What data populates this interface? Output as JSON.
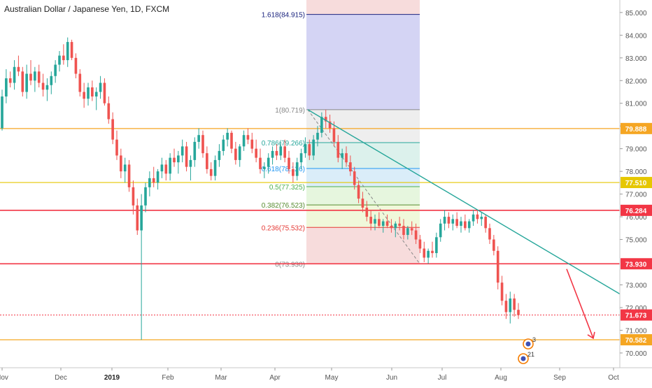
{
  "chart_data": {
    "type": "candlestick",
    "title": "Australian Dollar / Japanese Yen, 1D, FXCM",
    "y_axis": {
      "position": "right",
      "range": [
        69.35,
        85.55
      ],
      "ticks": [
        "70.000",
        "71.000",
        "72.000",
        "73.000",
        "75.000",
        "76.000",
        "77.000",
        "78.000",
        "79.000",
        "80.000",
        "81.000",
        "82.000",
        "83.000",
        "84.000",
        "85.000"
      ]
    },
    "x_axis": {
      "ticks": [
        "Nov",
        "Dec",
        "2019",
        "Feb",
        "Mar",
        "Apr",
        "May",
        "Jun",
        "Jul",
        "Aug",
        "Sep",
        "Oct"
      ]
    },
    "grid": false,
    "horizontal_levels": [
      {
        "label": "79.888",
        "value": 79.888,
        "color": "#f5a623"
      },
      {
        "label": "77.510",
        "value": 77.51,
        "color": "#e6c700"
      },
      {
        "label": "76.284",
        "value": 76.284,
        "color": "#f23645"
      },
      {
        "label": "73.930",
        "value": 73.93,
        "color": "#f23645"
      },
      {
        "label": "71.673",
        "value": 71.673,
        "color": "#f23645"
      },
      {
        "label": "70.582",
        "value": 70.582,
        "color": "#f5a623"
      }
    ],
    "fibonacci": {
      "levels": [
        {
          "label": "1.618(84.915)",
          "value": 84.915,
          "color": "#1a237e",
          "fill": "#ccccf2"
        },
        {
          "label": "1(80.719)",
          "value": 80.719,
          "color": "#888888",
          "fill": "#ebebeb"
        },
        {
          "label": "0.786(79.266)",
          "value": 79.266,
          "color": "#26a69a",
          "fill": "#d6efe9"
        },
        {
          "label": "0.618(78.126)",
          "value": 78.126,
          "color": "#2196f3",
          "fill": "#d4eaf8"
        },
        {
          "label": "0.5(77.325)",
          "value": 77.325,
          "color": "#4caf50",
          "fill": "#e2f4d8"
        },
        {
          "label": "0.382(76.523)",
          "value": 76.523,
          "color": "#558b2f",
          "fill": "#edf7d4"
        },
        {
          "label": "0.236(75.532)",
          "value": 75.532,
          "color": "#e53935",
          "fill": "#f6d6d6"
        },
        {
          "label": "0(73.930)",
          "value": 73.93,
          "color": "#888888",
          "fill": "#f6d6d6"
        }
      ]
    },
    "trendline": {
      "from": [
        0.47,
        80.719
      ],
      "to": [
        1.0,
        72.6
      ],
      "color": "#26a69a"
    },
    "projection_arrow": {
      "from": [
        0.87,
        73.7
      ],
      "to": [
        0.91,
        70.65
      ],
      "color": "#f23645"
    },
    "ohlc": [
      [
        79.9,
        81.6,
        79.8,
        81.3
      ],
      [
        81.3,
        82.5,
        81.0,
        82.1
      ],
      [
        82.1,
        82.4,
        81.7,
        81.9
      ],
      [
        81.9,
        82.9,
        81.6,
        82.6
      ],
      [
        82.6,
        83.1,
        82.2,
        82.4
      ],
      [
        82.4,
        82.6,
        81.3,
        81.5
      ],
      [
        81.5,
        82.7,
        81.2,
        82.3
      ],
      [
        82.3,
        82.9,
        81.8,
        82.0
      ],
      [
        82.0,
        82.6,
        81.5,
        82.4
      ],
      [
        82.4,
        82.7,
        81.7,
        81.9
      ],
      [
        81.9,
        82.3,
        81.3,
        81.6
      ],
      [
        81.6,
        82.1,
        81.1,
        81.8
      ],
      [
        81.8,
        82.4,
        81.4,
        82.2
      ],
      [
        82.2,
        82.9,
        81.9,
        82.7
      ],
      [
        82.7,
        83.3,
        82.4,
        83.1
      ],
      [
        83.1,
        83.6,
        82.7,
        82.9
      ],
      [
        82.9,
        83.9,
        82.6,
        83.7
      ],
      [
        83.7,
        83.8,
        82.9,
        83.0
      ],
      [
        83.0,
        83.2,
        82.1,
        82.3
      ],
      [
        82.3,
        82.5,
        81.3,
        81.5
      ],
      [
        81.5,
        81.9,
        80.8,
        81.2
      ],
      [
        81.2,
        81.9,
        80.9,
        81.7
      ],
      [
        81.7,
        82.0,
        81.1,
        81.3
      ],
      [
        81.3,
        81.7,
        80.7,
        81.5
      ],
      [
        81.5,
        82.2,
        81.2,
        81.9
      ],
      [
        81.9,
        82.1,
        80.9,
        81.0
      ],
      [
        81.0,
        81.3,
        80.1,
        80.3
      ],
      [
        80.3,
        80.6,
        79.2,
        79.4
      ],
      [
        79.4,
        79.8,
        78.5,
        78.7
      ],
      [
        78.7,
        79.0,
        77.7,
        78.0
      ],
      [
        78.0,
        78.6,
        77.5,
        78.3
      ],
      [
        78.3,
        78.5,
        77.1,
        77.3
      ],
      [
        77.3,
        77.6,
        76.1,
        76.5
      ],
      [
        76.5,
        76.8,
        75.2,
        75.4
      ],
      [
        75.4,
        77.0,
        70.58,
        76.5
      ],
      [
        76.5,
        77.5,
        76.2,
        77.3
      ],
      [
        77.3,
        78.0,
        76.9,
        77.7
      ],
      [
        77.7,
        78.2,
        77.3,
        77.5
      ],
      [
        77.5,
        78.1,
        77.2,
        78.0
      ],
      [
        78.0,
        78.6,
        77.7,
        78.3
      ],
      [
        78.3,
        78.5,
        77.6,
        77.9
      ],
      [
        77.9,
        78.8,
        77.6,
        78.6
      ],
      [
        78.6,
        79.0,
        78.2,
        78.4
      ],
      [
        78.4,
        78.9,
        77.9,
        78.7
      ],
      [
        78.7,
        79.4,
        78.4,
        79.1
      ],
      [
        79.1,
        79.3,
        78.0,
        78.2
      ],
      [
        78.2,
        78.7,
        77.6,
        78.5
      ],
      [
        78.5,
        79.5,
        78.2,
        79.3
      ],
      [
        79.3,
        79.9,
        79.0,
        79.6
      ],
      [
        79.6,
        79.8,
        78.6,
        78.8
      ],
      [
        78.8,
        79.1,
        77.9,
        78.1
      ],
      [
        78.1,
        78.4,
        77.6,
        77.8
      ],
      [
        77.8,
        78.7,
        77.6,
        78.5
      ],
      [
        78.5,
        79.2,
        78.2,
        78.9
      ],
      [
        78.9,
        79.6,
        78.7,
        79.4
      ],
      [
        79.4,
        79.9,
        79.1,
        79.7
      ],
      [
        79.7,
        79.8,
        78.8,
        79.0
      ],
      [
        79.0,
        79.3,
        78.3,
        78.5
      ],
      [
        78.5,
        79.2,
        78.2,
        79.1
      ],
      [
        79.1,
        79.8,
        78.9,
        79.6
      ],
      [
        79.6,
        79.9,
        79.2,
        79.4
      ],
      [
        79.4,
        79.7,
        78.8,
        79.0
      ],
      [
        79.0,
        79.4,
        78.4,
        78.6
      ],
      [
        78.6,
        79.0,
        77.9,
        78.1
      ],
      [
        78.1,
        78.4,
        77.7,
        78.2
      ],
      [
        78.2,
        78.8,
        77.9,
        78.6
      ],
      [
        78.6,
        79.1,
        78.3,
        78.9
      ],
      [
        78.9,
        79.2,
        78.5,
        78.7
      ],
      [
        78.7,
        79.3,
        78.5,
        79.1
      ],
      [
        79.1,
        79.4,
        78.4,
        78.6
      ],
      [
        78.6,
        78.9,
        77.9,
        78.1
      ],
      [
        78.1,
        78.4,
        77.5,
        77.8
      ],
      [
        77.8,
        78.6,
        77.6,
        78.4
      ],
      [
        78.4,
        79.0,
        78.1,
        78.8
      ],
      [
        78.8,
        79.5,
        78.6,
        79.2
      ],
      [
        79.2,
        79.4,
        78.5,
        78.7
      ],
      [
        78.7,
        79.6,
        78.5,
        79.4
      ],
      [
        79.4,
        80.0,
        79.1,
        79.7
      ],
      [
        79.7,
        80.6,
        79.5,
        80.4
      ],
      [
        80.4,
        80.72,
        79.9,
        80.2
      ],
      [
        80.2,
        80.5,
        79.7,
        79.9
      ],
      [
        79.9,
        80.2,
        79.1,
        79.3
      ],
      [
        79.3,
        79.6,
        78.4,
        78.6
      ],
      [
        78.6,
        79.0,
        78.1,
        78.8
      ],
      [
        78.8,
        79.1,
        78.2,
        78.4
      ],
      [
        78.4,
        78.7,
        77.8,
        78.0
      ],
      [
        78.0,
        78.2,
        77.2,
        77.4
      ],
      [
        77.4,
        77.6,
        76.6,
        76.8
      ],
      [
        76.8,
        77.1,
        76.2,
        76.4
      ],
      [
        76.4,
        76.7,
        75.8,
        76.0
      ],
      [
        76.0,
        76.3,
        75.4,
        75.7
      ],
      [
        75.7,
        76.1,
        75.4,
        75.9
      ],
      [
        75.9,
        76.2,
        75.5,
        75.6
      ],
      [
        75.6,
        75.9,
        75.3,
        75.8
      ],
      [
        75.8,
        76.1,
        75.5,
        75.6
      ],
      [
        75.6,
        75.9,
        75.3,
        75.5
      ],
      [
        75.5,
        75.8,
        75.1,
        75.7
      ],
      [
        75.7,
        76.0,
        75.4,
        75.6
      ],
      [
        75.6,
        75.9,
        75.0,
        75.2
      ],
      [
        75.2,
        75.6,
        75.0,
        75.5
      ],
      [
        75.5,
        75.8,
        75.2,
        75.4
      ],
      [
        75.4,
        75.7,
        74.8,
        75.0
      ],
      [
        75.0,
        75.2,
        74.4,
        74.6
      ],
      [
        74.6,
        74.9,
        74.0,
        74.2
      ],
      [
        74.2,
        74.6,
        73.93,
        74.5
      ],
      [
        74.5,
        74.9,
        74.2,
        74.4
      ],
      [
        74.4,
        75.3,
        74.2,
        75.1
      ],
      [
        75.1,
        75.9,
        74.9,
        75.7
      ],
      [
        75.7,
        76.3,
        75.4,
        76.0
      ],
      [
        76.0,
        76.2,
        75.5,
        75.7
      ],
      [
        75.7,
        76.1,
        75.4,
        75.9
      ],
      [
        75.9,
        76.2,
        75.5,
        75.6
      ],
      [
        75.6,
        76.0,
        75.3,
        75.8
      ],
      [
        75.8,
        76.1,
        75.4,
        75.5
      ],
      [
        75.5,
        75.9,
        75.3,
        75.8
      ],
      [
        75.8,
        76.3,
        75.6,
        76.1
      ],
      [
        76.1,
        76.3,
        75.7,
        75.9
      ],
      [
        75.9,
        76.2,
        75.6,
        76.0
      ],
      [
        76.0,
        76.1,
        75.3,
        75.5
      ],
      [
        75.5,
        75.7,
        74.8,
        75.0
      ],
      [
        75.0,
        75.2,
        74.3,
        74.5
      ],
      [
        74.5,
        74.7,
        72.8,
        73.1
      ],
      [
        73.1,
        73.4,
        72.1,
        72.3
      ],
      [
        72.3,
        72.6,
        71.5,
        71.8
      ],
      [
        71.8,
        72.7,
        71.3,
        72.4
      ],
      [
        72.4,
        72.6,
        71.6,
        71.9
      ],
      [
        71.9,
        72.2,
        71.5,
        71.67
      ]
    ],
    "event_markers": [
      {
        "label": "3"
      },
      {
        "label": "21"
      }
    ]
  }
}
